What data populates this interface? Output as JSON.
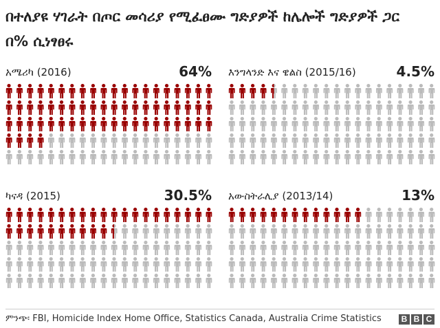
{
  "title": "በተለያዩ ሃገራት በጦር መሳሪያ የሚፈፀሙ ግድያዎች ከሌሎች ግድያዎች ጋር በ% ሲነፃፀሩ",
  "colors": {
    "highlight": "#990000",
    "base": "#bbbbbb"
  },
  "icon": "person-icon",
  "chart_data": [
    {
      "type": "pictogram",
      "label": "አሜሪካ (2016)",
      "percent_label": "64%",
      "value": 64,
      "total": 100
    },
    {
      "type": "pictogram",
      "label": "እንግላንድ እና ዌልስ (2015/16)",
      "percent_label": "4.5%",
      "value": 4.5,
      "total": 100
    },
    {
      "type": "pictogram",
      "label": "ካናዳ (2015)",
      "percent_label": "30.5%",
      "value": 30.5,
      "total": 100
    },
    {
      "type": "pictogram",
      "label": "አውስትራሊያ (2013/14)",
      "percent_label": "13%",
      "value": 13,
      "total": 100
    }
  ],
  "footer": {
    "source": "ምንጭ፡ FBI, Homicide Index Home Office, Statistics Canada, Australia Crime Statistics",
    "logo_letters": [
      "B",
      "B",
      "C"
    ]
  }
}
